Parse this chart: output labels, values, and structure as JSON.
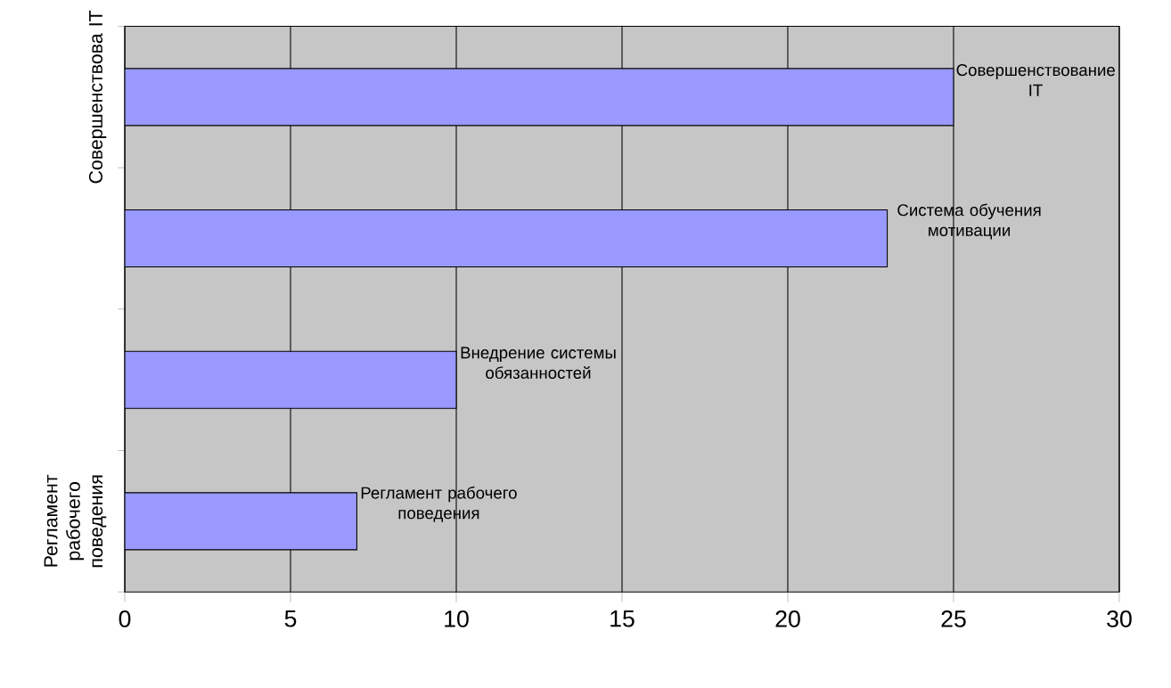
{
  "chart_data": {
    "type": "bar",
    "orientation": "horizontal",
    "categories": [
      "Совершенствова IT",
      null,
      null,
      "Регламент рабочего поведения"
    ],
    "values": [
      25,
      23,
      10,
      7
    ],
    "color": "#9999ff",
    "xlim": [
      0,
      30
    ],
    "xticks": [
      0,
      5,
      10,
      15,
      20,
      25,
      30
    ],
    "grid": "x",
    "annotations": [
      {
        "text": "Совершенствование IT",
        "x": 25
      },
      {
        "text": "Система обучения мотивации",
        "x": 23
      },
      {
        "text": "Внедрение системы обязанностей",
        "x": 10
      },
      {
        "text": "Регламент рабочего поведения",
        "x": 7
      }
    ]
  }
}
